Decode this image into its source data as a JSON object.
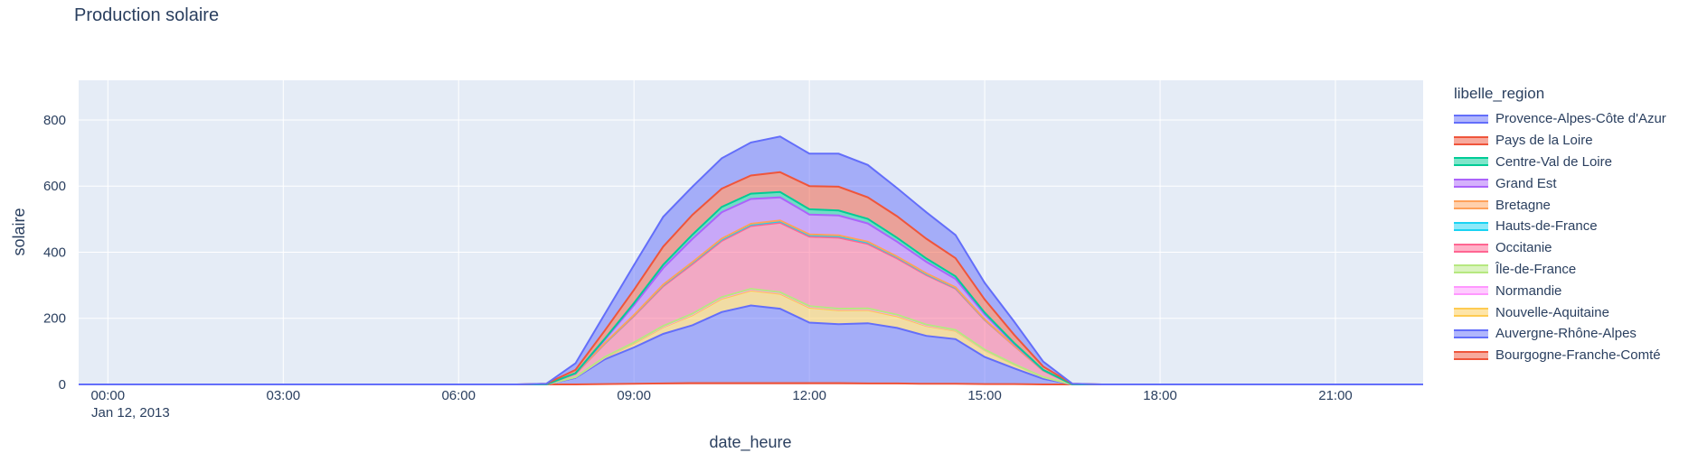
{
  "title": "Production solaire",
  "chart_data": {
    "type": "area",
    "stacked": true,
    "title": "Production solaire",
    "xlabel": "date_heure",
    "ylabel": "solaire",
    "legend_title": "libelle_region",
    "legend_position": "right",
    "grid": true,
    "x_date": "Jan 12, 2013",
    "x_range": [
      "23:30",
      "22:30"
    ],
    "ylim": [
      0,
      920
    ],
    "x_ticks": [
      "00:00",
      "03:00",
      "06:00",
      "09:00",
      "12:00",
      "15:00",
      "18:00",
      "21:00"
    ],
    "y_ticks": [
      0,
      200,
      400,
      600,
      800
    ],
    "x": [
      "23:30",
      "00:00",
      "00:30",
      "01:00",
      "01:30",
      "02:00",
      "02:30",
      "03:00",
      "03:30",
      "04:00",
      "04:30",
      "05:00",
      "05:30",
      "06:00",
      "06:30",
      "07:00",
      "07:30",
      "08:00",
      "08:30",
      "09:00",
      "09:30",
      "10:00",
      "10:30",
      "11:00",
      "11:30",
      "12:00",
      "12:30",
      "13:00",
      "13:30",
      "14:00",
      "14:30",
      "15:00",
      "15:30",
      "16:00",
      "16:30",
      "17:00",
      "17:30",
      "18:00",
      "18:30",
      "19:00",
      "19:30",
      "20:00",
      "20:30",
      "21:00",
      "21:30",
      "22:00",
      "22:30"
    ],
    "series": [
      {
        "name": "Bourgogne-Franche-Comté",
        "color": "#EF553B",
        "values": [
          0,
          0,
          0,
          0,
          0,
          0,
          0,
          0,
          0,
          0,
          0,
          0,
          0,
          0,
          0,
          0,
          0,
          0,
          1,
          2,
          3,
          4,
          4,
          4,
          4,
          4,
          4,
          3,
          3,
          2,
          2,
          1,
          1,
          0,
          0,
          0,
          0,
          0,
          0,
          0,
          0,
          0,
          0,
          0,
          0,
          0,
          0
        ]
      },
      {
        "name": "Auvergne-Rhône-Alpes",
        "color": "#636EFA",
        "values": [
          0,
          0,
          0,
          0,
          0,
          0,
          0,
          0,
          0,
          0,
          0,
          0,
          0,
          0,
          0,
          0,
          0,
          20,
          75,
          110,
          150,
          175,
          215,
          235,
          225,
          183,
          178,
          182,
          168,
          145,
          135,
          82,
          48,
          17,
          0,
          0,
          0,
          0,
          0,
          0,
          0,
          0,
          0,
          0,
          0,
          0,
          0
        ]
      },
      {
        "name": "Nouvelle-Aquitaine",
        "color": "#FECB52",
        "values": [
          0,
          0,
          0,
          0,
          0,
          0,
          0,
          0,
          0,
          0,
          0,
          0,
          0,
          0,
          0,
          0,
          0,
          2,
          5,
          12,
          20,
          30,
          40,
          45,
          45,
          45,
          42,
          40,
          35,
          30,
          25,
          20,
          12,
          5,
          0,
          0,
          0,
          0,
          0,
          0,
          0,
          0,
          0,
          0,
          0,
          0,
          0
        ]
      },
      {
        "name": "Normandie",
        "color": "#FF97FF",
        "values": [
          0,
          0,
          0,
          0,
          0,
          0,
          0,
          0,
          0,
          0,
          0,
          0,
          0,
          0,
          0,
          0,
          0,
          0,
          1,
          2,
          2,
          3,
          3,
          3,
          3,
          3,
          3,
          3,
          3,
          2,
          2,
          1,
          1,
          0,
          0,
          0,
          0,
          0,
          0,
          0,
          0,
          0,
          0,
          0,
          0,
          0,
          0
        ]
      },
      {
        "name": "Île-de-France",
        "color": "#B6E880",
        "values": [
          0,
          0,
          0,
          0,
          0,
          0,
          0,
          0,
          0,
          0,
          0,
          0,
          0,
          0,
          0,
          0,
          0,
          0,
          1,
          1,
          2,
          2,
          2,
          2,
          2,
          2,
          2,
          2,
          2,
          2,
          1,
          1,
          0,
          0,
          0,
          0,
          0,
          0,
          0,
          0,
          0,
          0,
          0,
          0,
          0,
          0,
          0
        ]
      },
      {
        "name": "Occitanie",
        "color": "#FF6692",
        "values": [
          0,
          0,
          0,
          0,
          0,
          0,
          0,
          0,
          0,
          0,
          0,
          0,
          0,
          0,
          0,
          0,
          0,
          10,
          40,
          80,
          120,
          150,
          170,
          190,
          210,
          210,
          215,
          195,
          170,
          150,
          125,
          90,
          55,
          20,
          0,
          0,
          0,
          0,
          0,
          0,
          0,
          0,
          0,
          0,
          0,
          0,
          0
        ]
      },
      {
        "name": "Hauts-de-France",
        "color": "#19D3F3",
        "values": [
          0,
          0,
          0,
          0,
          0,
          0,
          0,
          0,
          0,
          0,
          0,
          0,
          0,
          0,
          0,
          0,
          0,
          0,
          1,
          2,
          3,
          4,
          4,
          4,
          4,
          4,
          4,
          4,
          4,
          3,
          2,
          1,
          1,
          0,
          0,
          0,
          0,
          0,
          0,
          0,
          0,
          0,
          0,
          0,
          0,
          0,
          0
        ]
      },
      {
        "name": "Bretagne",
        "color": "#FFA15A",
        "values": [
          0,
          0,
          0,
          0,
          0,
          0,
          0,
          0,
          0,
          0,
          0,
          0,
          0,
          0,
          0,
          0,
          0,
          0,
          1,
          1,
          2,
          2,
          3,
          3,
          3,
          3,
          3,
          3,
          2,
          2,
          2,
          1,
          0,
          0,
          0,
          0,
          0,
          0,
          0,
          0,
          0,
          0,
          0,
          0,
          0,
          0,
          0
        ]
      },
      {
        "name": "Grand Est",
        "color": "#AB63FA",
        "values": [
          0,
          0,
          0,
          0,
          0,
          0,
          0,
          0,
          0,
          0,
          0,
          0,
          0,
          0,
          0,
          0,
          0,
          1,
          10,
          30,
          50,
          70,
          80,
          75,
          70,
          60,
          60,
          55,
          45,
          35,
          25,
          15,
          5,
          1,
          0,
          0,
          0,
          0,
          0,
          0,
          0,
          0,
          0,
          0,
          0,
          0,
          0
        ]
      },
      {
        "name": "Centre-Val de Loire",
        "color": "#00CC96",
        "values": [
          0,
          0,
          0,
          0,
          0,
          0,
          0,
          0,
          0,
          0,
          0,
          0,
          0,
          0,
          0,
          0,
          0,
          1,
          3,
          6,
          10,
          13,
          16,
          16,
          16,
          16,
          15,
          14,
          12,
          10,
          8,
          5,
          3,
          1,
          0,
          0,
          0,
          0,
          0,
          0,
          0,
          0,
          0,
          0,
          0,
          0,
          0
        ]
      },
      {
        "name": "Pays de la Loire",
        "color": "#EF553B",
        "values": [
          0,
          0,
          0,
          0,
          0,
          0,
          0,
          0,
          0,
          0,
          0,
          0,
          0,
          0,
          0,
          0,
          2,
          10,
          25,
          40,
          55,
          60,
          55,
          55,
          60,
          70,
          72,
          65,
          65,
          60,
          55,
          40,
          25,
          10,
          2,
          0,
          0,
          0,
          0,
          0,
          0,
          0,
          0,
          0,
          0,
          0,
          0
        ]
      },
      {
        "name": "Provence-Alpes-Côte d'Azur",
        "color": "#636EFA",
        "values": [
          0,
          0,
          0,
          0,
          0,
          0,
          0,
          0,
          0,
          0,
          0,
          0,
          0,
          0,
          0,
          0,
          0,
          20,
          50,
          75,
          90,
          85,
          92,
          100,
          108,
          98,
          100,
          98,
          85,
          80,
          70,
          50,
          40,
          15,
          0,
          0,
          0,
          0,
          0,
          0,
          0,
          0,
          0,
          0,
          0,
          0,
          0
        ]
      }
    ],
    "line_colors_top_down": [
      "#636EFA",
      "#EF553B",
      "#00CC96",
      "#AB63FA",
      "#FFA15A",
      "#19D3F3",
      "#FF6692",
      "#B6E880",
      "#FF97FF",
      "#FECB52",
      "#636EFA",
      "#EF553B"
    ]
  }
}
